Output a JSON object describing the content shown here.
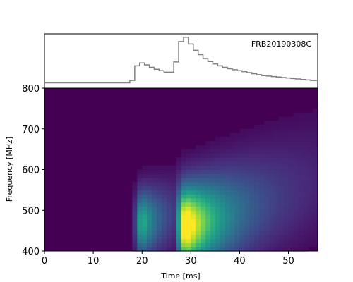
{
  "chart_data": [
    {
      "type": "line",
      "drawstyle": "steps",
      "annotation": "FRB20190308C",
      "x": [
        0,
        17.5,
        18.5,
        19.5,
        20.5,
        21.5,
        22.5,
        23.5,
        24.5,
        25.5,
        26.5,
        27.5,
        28.5,
        29.5,
        30.5,
        31.5,
        32.5,
        33.5,
        34.5,
        35.5,
        36.5,
        37.5,
        38.5,
        39.5,
        40.5,
        41.5,
        42.5,
        43.5,
        44.5,
        45.5,
        46.5,
        47.5,
        48.5,
        49.5,
        50.5,
        51.5,
        52.5,
        53.5,
        54.5,
        55.5,
        56
      ],
      "y": [
        0.05,
        0.1,
        0.4,
        0.46,
        0.42,
        0.37,
        0.33,
        0.3,
        0.27,
        0.27,
        0.48,
        0.9,
        0.99,
        0.85,
        0.72,
        0.63,
        0.55,
        0.49,
        0.44,
        0.4,
        0.37,
        0.34,
        0.32,
        0.3,
        0.28,
        0.26,
        0.24,
        0.22,
        0.2,
        0.19,
        0.18,
        0.17,
        0.16,
        0.15,
        0.14,
        0.13,
        0.12,
        0.11,
        0.1,
        0.1,
        0.1
      ],
      "color": "#808080",
      "xlim": [
        0,
        56
      ]
    },
    {
      "type": "heatmap",
      "xlabel": "Time [ms]",
      "ylabel": "Frequency [MHz]",
      "xlim": [
        0,
        56
      ],
      "ylim": [
        400,
        800
      ],
      "xticks": [
        0,
        10,
        20,
        30,
        40,
        50
      ],
      "yticks": [
        400,
        500,
        600,
        700,
        800
      ],
      "colormap": "viridis",
      "background_color": "#440154",
      "x_bin_ms": 1,
      "y_bin_mhz": 10,
      "components": [
        {
          "onset_ms": 18,
          "center_ms": 20,
          "center_mhz": 470,
          "amplitude": 0.65,
          "decay_ms": 3.5,
          "rise_ms": 0.8,
          "freq_sigma_mhz": 55
        },
        {
          "onset_ms": 27,
          "center_ms": 29,
          "center_mhz": 460,
          "amplitude": 1.1,
          "decay_ms": 7,
          "rise_ms": 1.0,
          "freq_sigma_mhz": 65
        }
      ]
    }
  ]
}
